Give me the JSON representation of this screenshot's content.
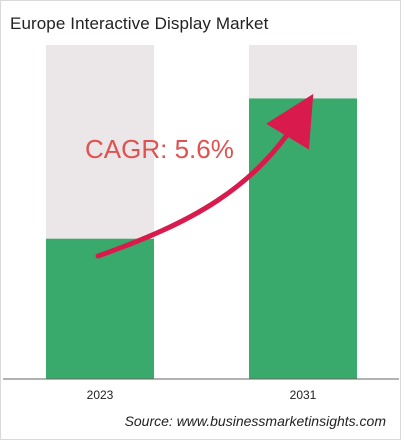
{
  "title": "Europe Interactive Display Market",
  "annotation": "CAGR: 5.6%",
  "source": "Source: www.businessmarketinsights.com",
  "colors": {
    "bar_fill": "#3aaa6c",
    "bar_background": "#ebe7e8",
    "arrow": "#d81b4c",
    "cagr_text": "#e05252"
  },
  "chart_data": {
    "type": "bar",
    "title": "Europe Interactive Display Market",
    "categories": [
      "2023",
      "2031"
    ],
    "values": [
      0.42,
      0.84
    ],
    "ylim": [
      0,
      1
    ],
    "grid": false,
    "legend": "none",
    "annotation": "CAGR: 5.6%"
  }
}
